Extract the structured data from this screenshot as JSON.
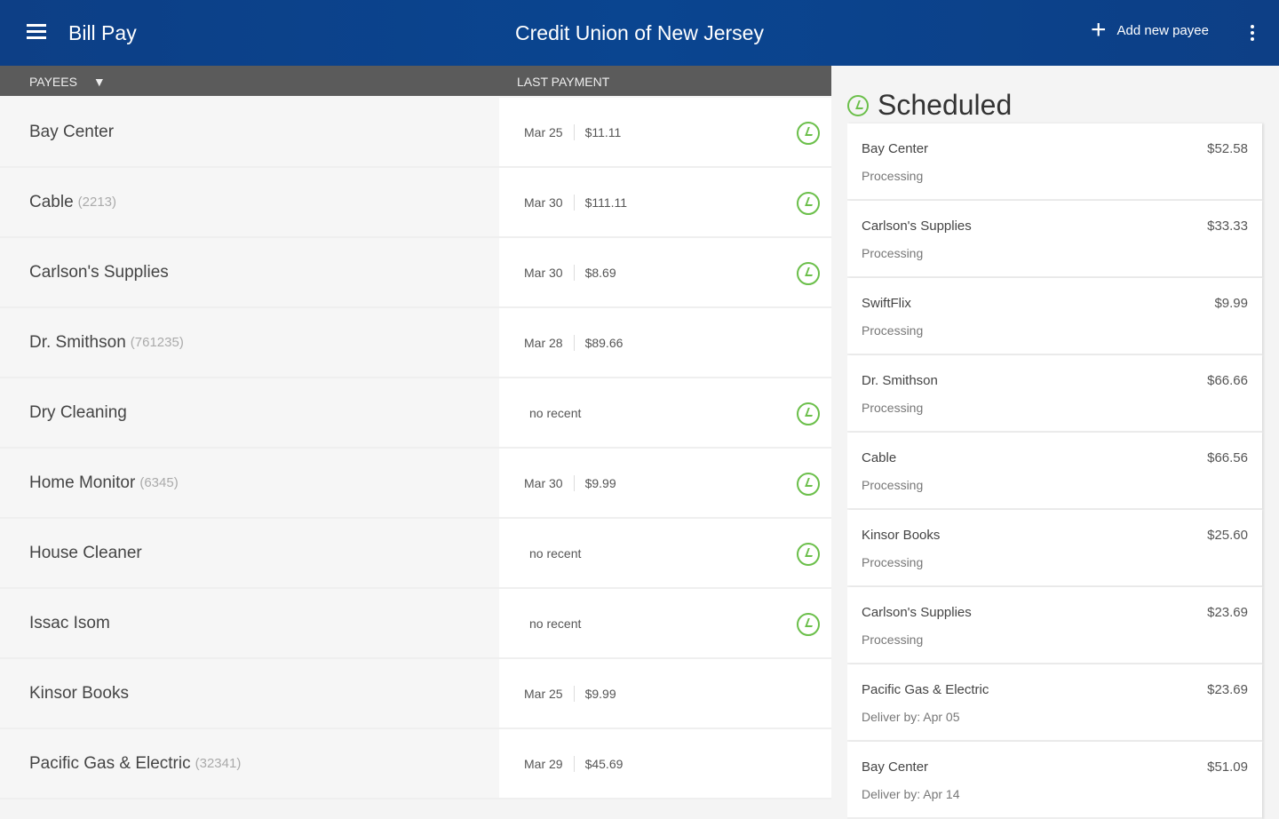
{
  "header": {
    "title": "Bill Pay",
    "org": "Credit Union of New Jersey",
    "add_label": "Add new payee"
  },
  "columns": {
    "payees": "PAYEES",
    "last_payment": "LAST PAYMENT"
  },
  "payees": [
    {
      "name": "Bay Center",
      "acct": "",
      "date": "Mar 25",
      "amount": "$11.11",
      "scheduled": true
    },
    {
      "name": "Cable",
      "acct": "(2213)",
      "date": "Mar 30",
      "amount": "$111.11",
      "scheduled": true
    },
    {
      "name": "Carlson's Supplies",
      "acct": "",
      "date": "Mar 30",
      "amount": "$8.69",
      "scheduled": true
    },
    {
      "name": "Dr. Smithson",
      "acct": "(761235)",
      "date": "Mar 28",
      "amount": "$89.66",
      "scheduled": false
    },
    {
      "name": "Dry Cleaning",
      "acct": "",
      "norecent": "no recent",
      "scheduled": true
    },
    {
      "name": "Home Monitor",
      "acct": "(6345)",
      "date": "Mar 30",
      "amount": "$9.99",
      "scheduled": true
    },
    {
      "name": "House Cleaner",
      "acct": "",
      "norecent": "no recent",
      "scheduled": true
    },
    {
      "name": "Issac Isom",
      "acct": "",
      "norecent": "no recent",
      "scheduled": true
    },
    {
      "name": "Kinsor Books",
      "acct": "",
      "date": "Mar 25",
      "amount": "$9.99",
      "scheduled": false
    },
    {
      "name": "Pacific Gas & Electric",
      "acct": "(32341)",
      "date": "Mar 29",
      "amount": "$45.69",
      "scheduled": false
    }
  ],
  "scheduled": {
    "title": "Scheduled",
    "items": [
      {
        "payee": "Bay Center",
        "amount": "$52.58",
        "status": "Processing"
      },
      {
        "payee": "Carlson's Supplies",
        "amount": "$33.33",
        "status": "Processing"
      },
      {
        "payee": "SwiftFlix",
        "amount": "$9.99",
        "status": "Processing"
      },
      {
        "payee": "Dr. Smithson",
        "amount": "$66.66",
        "status": "Processing"
      },
      {
        "payee": "Cable",
        "amount": "$66.56",
        "status": "Processing"
      },
      {
        "payee": "Kinsor Books",
        "amount": "$25.60",
        "status": "Processing"
      },
      {
        "payee": "Carlson's Supplies",
        "amount": "$23.69",
        "status": "Processing"
      },
      {
        "payee": "Pacific Gas & Electric",
        "amount": "$23.69",
        "status": "Deliver by: Apr 05"
      },
      {
        "payee": "Bay Center",
        "amount": "$51.09",
        "status": "Deliver by: Apr 14"
      }
    ]
  },
  "colors": {
    "header": "#0a4590",
    "accent": "#6bbf4a"
  }
}
